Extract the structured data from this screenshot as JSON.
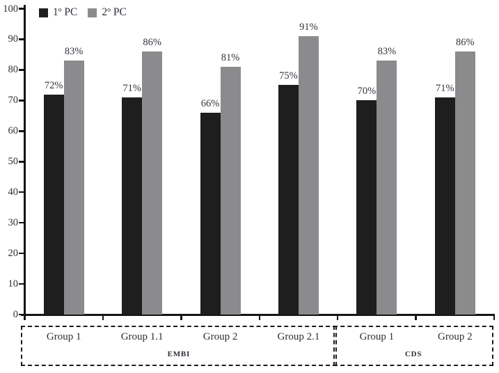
{
  "chart_data": {
    "type": "bar",
    "title": "",
    "xlabel": "",
    "ylabel": "",
    "categories": [
      "Group 1",
      "Group 1.1",
      "Group 2",
      "Group 2.1",
      "Group 1",
      "Group 2"
    ],
    "sections": [
      {
        "label": "EMBI",
        "start": 0,
        "end": 3
      },
      {
        "label": "CDS",
        "start": 4,
        "end": 5
      }
    ],
    "series": [
      {
        "name": "1º PC",
        "color": "#1e1e1e",
        "values": [
          72,
          71,
          66,
          75,
          70,
          71
        ]
      },
      {
        "name": "2º PC",
        "color": "#8b8b8e",
        "values": [
          83,
          86,
          81,
          91,
          83,
          86
        ]
      }
    ],
    "value_label_format": "percent",
    "value_labels": [
      [
        "72%",
        "71%",
        "66%",
        "75%",
        "70%",
        "71%"
      ],
      [
        "83%",
        "86%",
        "81%",
        "91%",
        "83%",
        "86%"
      ]
    ],
    "ylim": [
      0,
      100
    ],
    "yticks": [
      0,
      10,
      20,
      30,
      40,
      50,
      60,
      70,
      80,
      90,
      100
    ],
    "grid": false,
    "legend_position": "top-left"
  },
  "colors": {
    "axis": "#141414",
    "text": "#2e2e38",
    "background": "#ffffff",
    "series_1": "#1e1e1e",
    "series_2": "#8b8b8e"
  }
}
